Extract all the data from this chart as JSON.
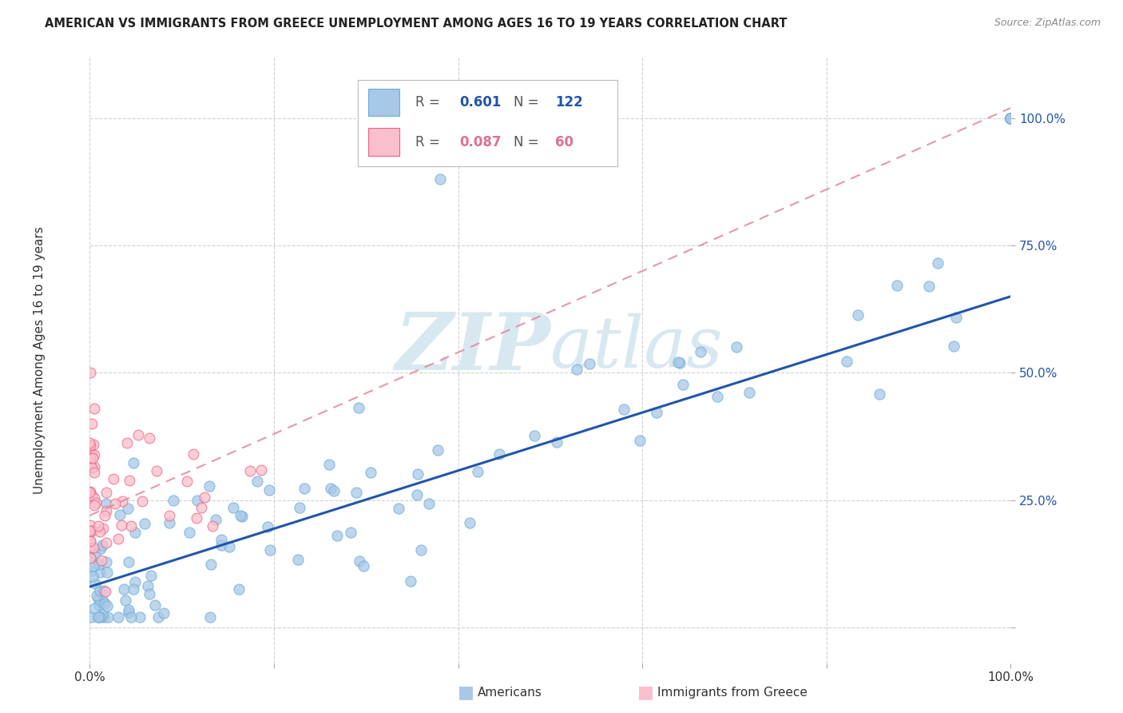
{
  "title": "AMERICAN VS IMMIGRANTS FROM GREECE UNEMPLOYMENT AMONG AGES 16 TO 19 YEARS CORRELATION CHART",
  "source": "Source: ZipAtlas.com",
  "ylabel": "Unemployment Among Ages 16 to 19 years",
  "legend_r_american": "0.601",
  "legend_n_american": "122",
  "legend_r_greece": "0.087",
  "legend_n_greece": "60",
  "american_color": "#a8c8e8",
  "american_edge_color": "#6baed6",
  "greece_color": "#f9c0cc",
  "greece_edge_color": "#f06080",
  "trendline_american_color": "#2255aa",
  "trendline_greece_color": "#e08898",
  "watermark_color": "#d8e8f0",
  "title_color": "#222222",
  "source_color": "#888888",
  "right_tick_color": "#2255aa",
  "legend_r_color_american": "#2255aa",
  "legend_n_color_american": "#2255aa",
  "legend_r_color_greece": "#e07090",
  "legend_n_color_greece": "#e07090"
}
